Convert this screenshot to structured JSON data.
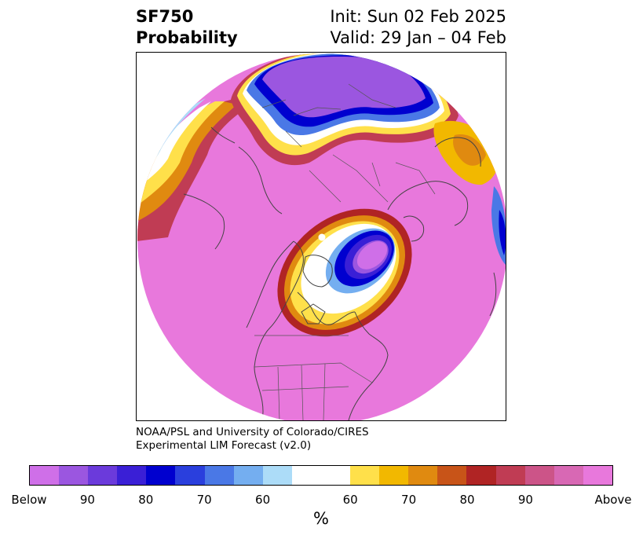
{
  "title": {
    "line1_left": "SF750",
    "line2_left": "Probability",
    "line1_right": "Init: Sun 02 Feb 2025",
    "line2_right": "Valid: 29 Jan – 04 Feb"
  },
  "credit": {
    "line1": "NOAA/PSL and University of Colorado/CIRES",
    "line2": "Experimental LIM Forecast (v2.0)"
  },
  "map": {
    "projection": "north-polar stereographic",
    "dominant_fill_color": "#e878dc",
    "coastline_color": "#444444"
  },
  "colorbar": {
    "unit_label": "%",
    "tick_labels": [
      "Below",
      "90",
      "80",
      "70",
      "60",
      "60",
      "70",
      "80",
      "90",
      "Above"
    ],
    "colors": [
      "#cf6fe8",
      "#9b56e0",
      "#6b3adb",
      "#3a1fd6",
      "#0000cf",
      "#2a3fdd",
      "#4a78e6",
      "#74aef0",
      "#acdcf8",
      "#ffffff",
      "#ffe04a",
      "#f2b800",
      "#e08a10",
      "#c85418",
      "#b02424",
      "#c03c54",
      "#cc5488",
      "#d868b4",
      "#e878dc"
    ]
  }
}
